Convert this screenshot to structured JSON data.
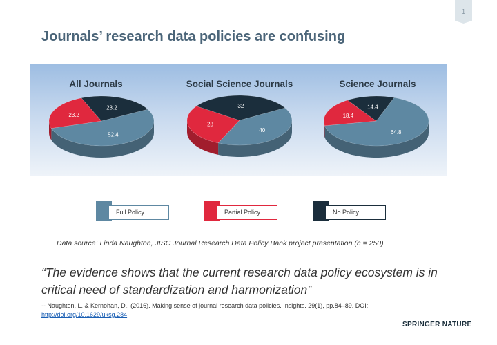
{
  "page_number": "1",
  "title": "Journals’ research data policies are confusing",
  "colors": {
    "full": "#5e88a2",
    "partial": "#e0283e",
    "none": "#1b2e3c",
    "title": "#4b6579"
  },
  "chart_data": [
    {
      "type": "pie",
      "title": "All Journals",
      "slices": [
        {
          "label": "Full Policy",
          "value": 52.4
        },
        {
          "label": "Partial Policy",
          "value": 23.2
        },
        {
          "label": "No Policy",
          "value": 23.2
        }
      ]
    },
    {
      "type": "pie",
      "title": "Social Science Journals",
      "slices": [
        {
          "label": "Full Policy",
          "value": 40
        },
        {
          "label": "Partial Policy",
          "value": 28
        },
        {
          "label": "No Policy",
          "value": 32
        }
      ]
    },
    {
      "type": "pie",
      "title": "Science Journals",
      "slices": [
        {
          "label": "Full Policy",
          "value": 64.8
        },
        {
          "label": "Partial Policy",
          "value": 18.4
        },
        {
          "label": "No Policy",
          "value": 14.4
        }
      ]
    }
  ],
  "legend": [
    {
      "label": "Full Policy",
      "key": "full"
    },
    {
      "label": "Partial Policy",
      "key": "partial"
    },
    {
      "label": "No Policy",
      "key": "none"
    }
  ],
  "source_note": "Data source: Linda Naughton, JISC Journal Research Data Policy Bank project presentation (n = 250)",
  "quote": "“The evidence shows that the current research data policy ecosystem is in critical need of standardization and harmonization”",
  "citation": {
    "text": "-- Naughton, L. & Kernohan, D., (2016). Making sense of journal research data policies. Insights. 29(1), pp.84–89. DOI:",
    "link": "http://doi.org/10.1629/uksg.284"
  },
  "brand": "SPRINGER NATURE"
}
